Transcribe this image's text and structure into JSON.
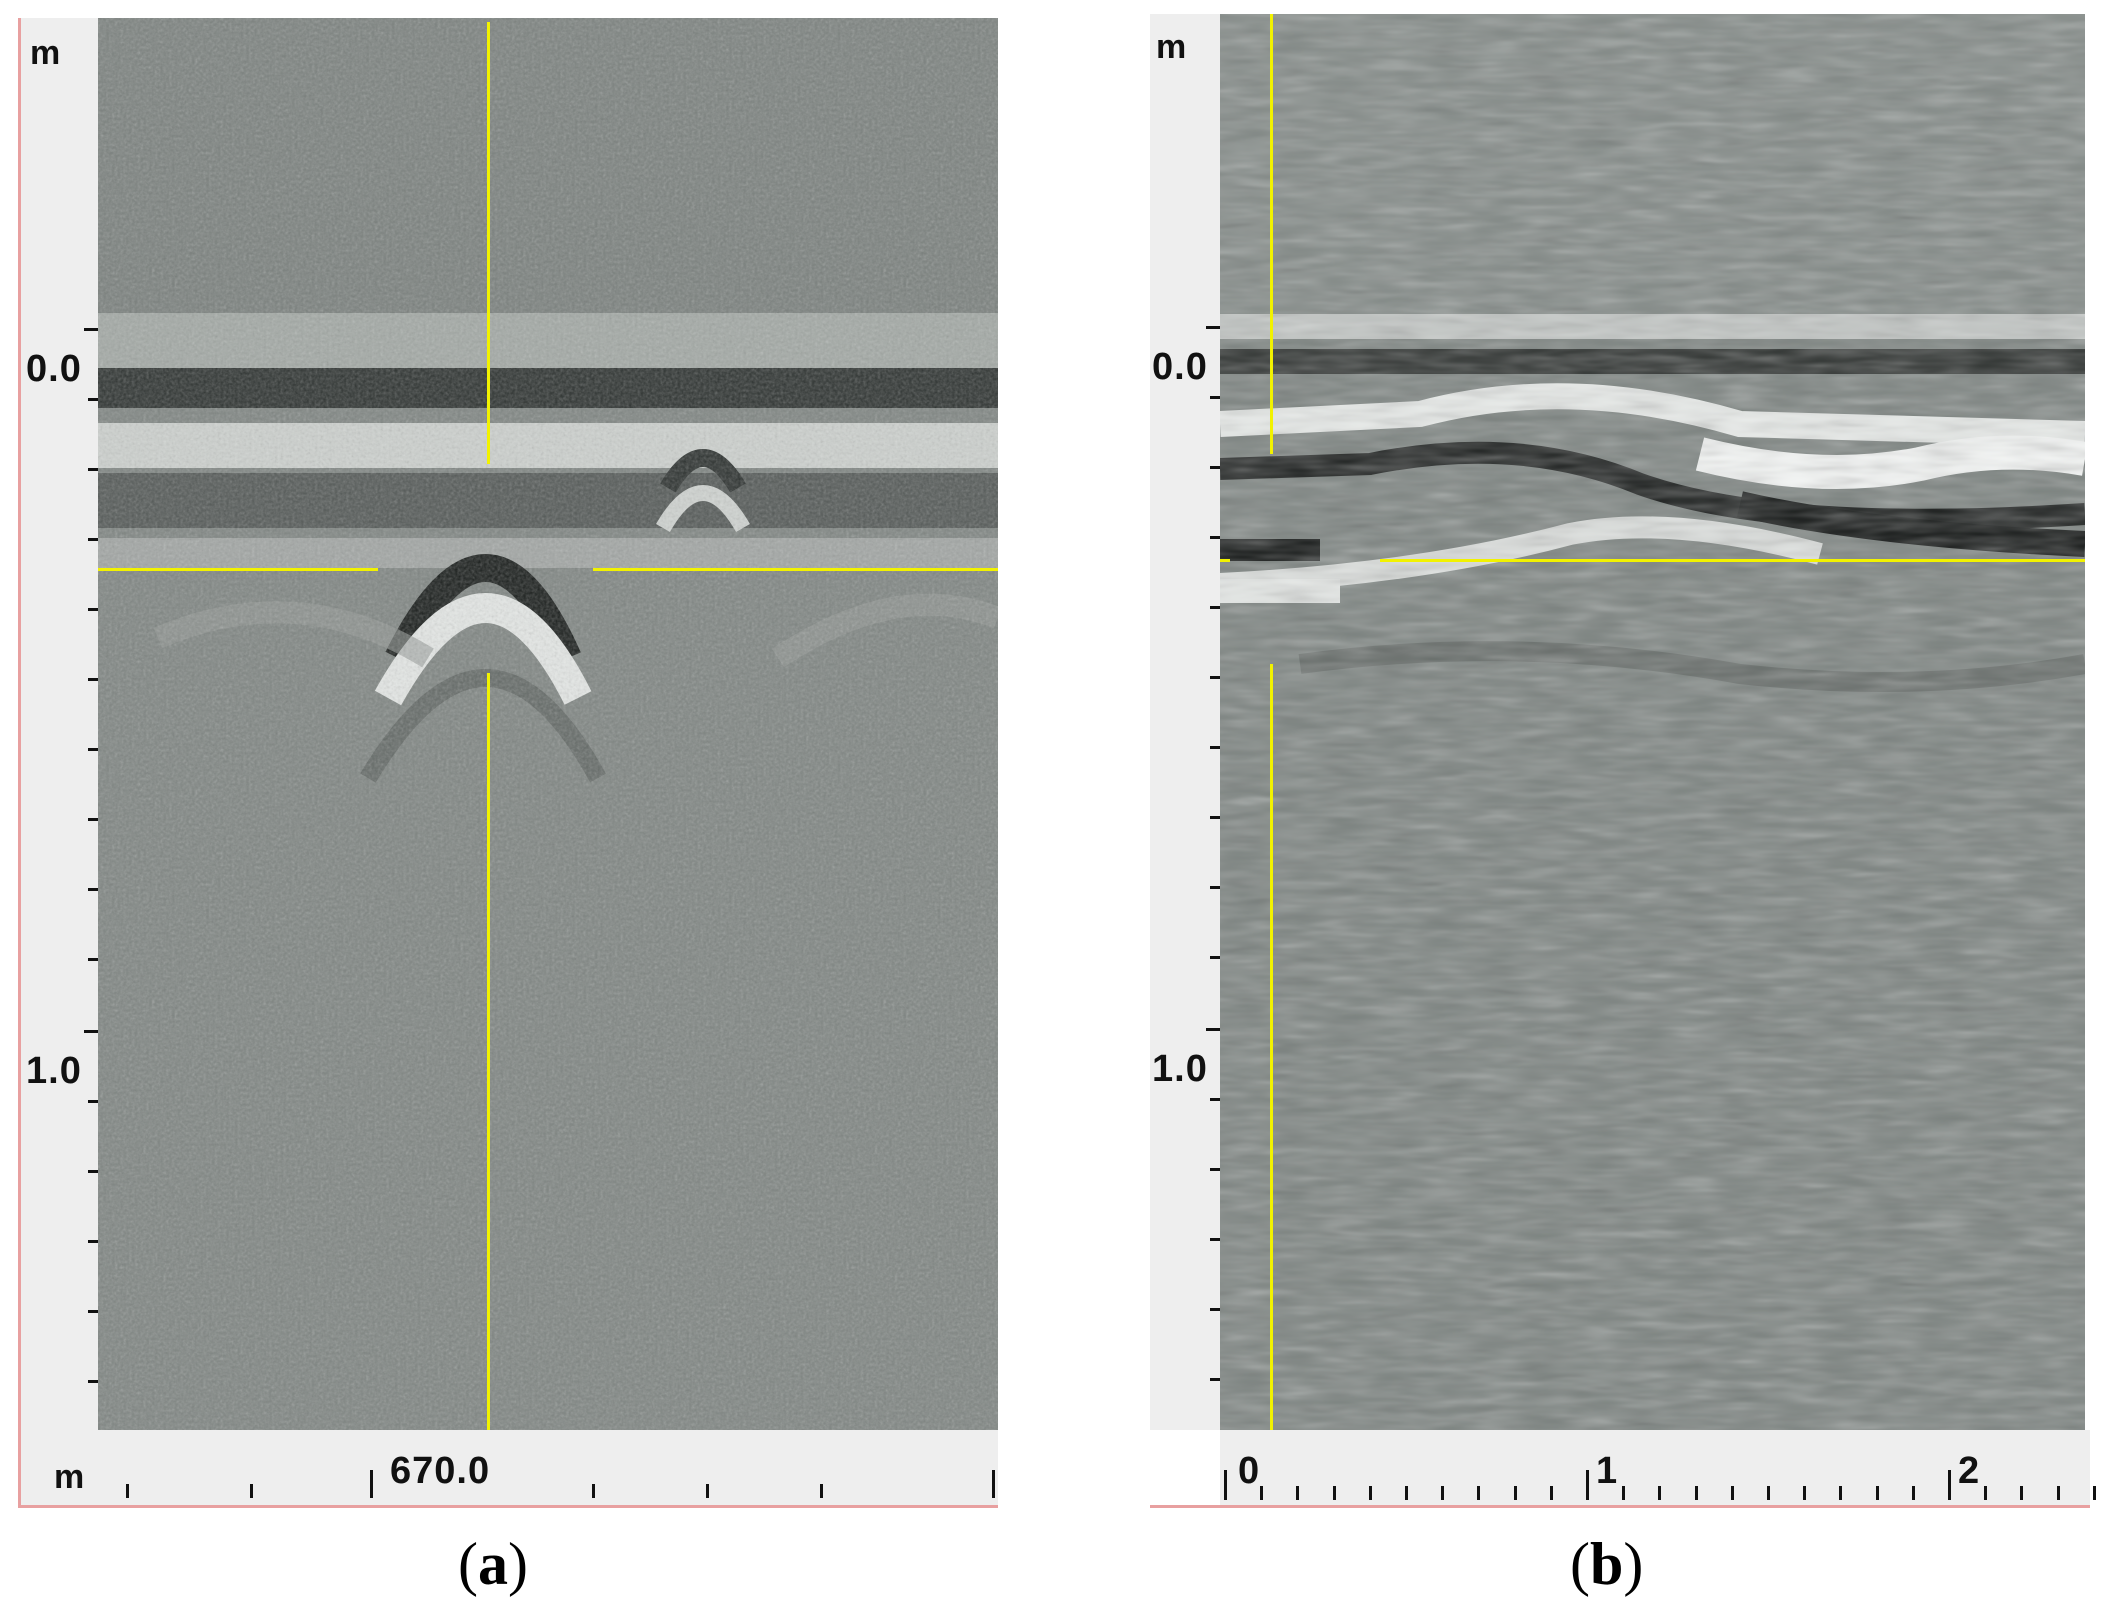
{
  "panels": [
    {
      "id": "a",
      "caption": "a",
      "depth_unit": "m",
      "distance_unit": "m",
      "depth_tick_labels": [
        "0.0",
        "1.0"
      ],
      "distance_tick_labels": [
        "670.0"
      ]
    },
    {
      "id": "b",
      "caption": "b",
      "depth_unit": "m",
      "depth_tick_labels": [
        "0.0",
        "1.0"
      ],
      "distance_tick_labels": [
        "0",
        "1",
        "2"
      ]
    }
  ],
  "colors": {
    "background": "#7f8582",
    "crosshair": "#f2f200",
    "ruler": "#eeeeee"
  }
}
